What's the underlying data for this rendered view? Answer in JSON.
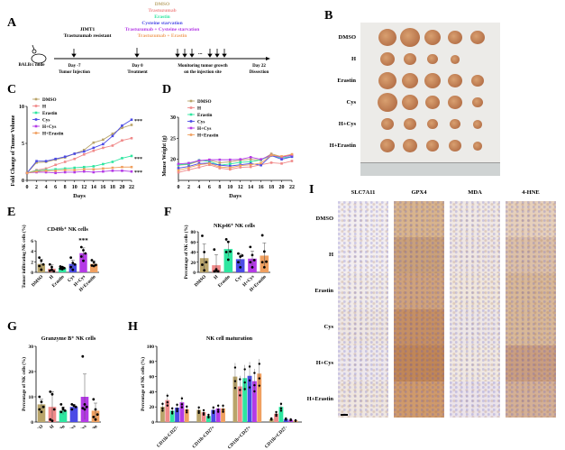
{
  "panels": {
    "A": {
      "label": "A",
      "groups": [
        "DMSO",
        "Trastuzumab",
        "Erastin",
        "Cysteine starvation",
        "Trastuzumab + Cysteine starvation",
        "Trastuzumab + Erastin"
      ],
      "group_colors": [
        "#b9a46a",
        "#f08a8a",
        "#2ee6a0",
        "#4b4be6",
        "#b43ae6",
        "#f0a060"
      ],
      "mouse_label": "BALB/c nude",
      "cell_line": "JIMT1",
      "cell_desc": "Trastuzumab resistant",
      "events": [
        {
          "day": "Day -7",
          "desc": "Tumor Injection"
        },
        {
          "day": "Day 0",
          "desc": "Treatment"
        },
        {
          "day": "Monitoring tumor growth",
          "desc": "on the injection site"
        },
        {
          "day": "Day 22",
          "desc": "Dissection"
        }
      ],
      "ellipsis": "..."
    },
    "B": {
      "label": "B",
      "rows": [
        "DMSO",
        "H",
        "Erastin",
        "Cys",
        "H+Cys",
        "H+Erastin"
      ],
      "tumor_counts": [
        5,
        4,
        5,
        5,
        5,
        5
      ]
    },
    "I": {
      "label": "I",
      "columns": [
        "SLC7A11",
        "GPX4",
        "MDA",
        "4-HNE"
      ],
      "rows": [
        "DMSO",
        "H",
        "Erastin",
        "Cys",
        "H+Cys",
        "H+Erastin"
      ]
    }
  },
  "chart_data": [
    {
      "id": "C",
      "panel_label": "C",
      "type": "line",
      "title": "",
      "xlabel": "Days",
      "ylabel": "Fold Change of Tumor Volume",
      "x": [
        0,
        2,
        4,
        6,
        8,
        10,
        12,
        14,
        16,
        18,
        20,
        22
      ],
      "xlim": [
        0,
        22
      ],
      "ylim": [
        0,
        10
      ],
      "yticks": [
        0,
        5,
        10
      ],
      "legend_position": "top-left",
      "series": [
        {
          "name": "DMSO",
          "color": "#b9a46a",
          "values": [
            1,
            2.4,
            2.5,
            2.8,
            3.1,
            3.6,
            4.1,
            5.1,
            5.5,
            6.3,
            7.1,
            7.5
          ]
        },
        {
          "name": "H",
          "color": "#f08a8a",
          "values": [
            1,
            1.4,
            1.6,
            2.1,
            2.5,
            2.9,
            3.5,
            4.0,
            4.4,
            4.7,
            5.4,
            5.7
          ]
        },
        {
          "name": "Erastin",
          "color": "#2ee6a0",
          "values": [
            1,
            1.3,
            1.4,
            1.5,
            1.6,
            1.7,
            1.8,
            1.9,
            2.2,
            2.5,
            3.0,
            3.3
          ]
        },
        {
          "name": "Cys",
          "color": "#4b4be6",
          "values": [
            1,
            2.6,
            2.6,
            2.9,
            3.2,
            3.6,
            3.9,
            4.4,
            4.9,
            6.0,
            7.4,
            8.2
          ]
        },
        {
          "name": "H+Cys",
          "color": "#b43ae6",
          "values": [
            1,
            1.1,
            1.1,
            1.0,
            1.1,
            1.1,
            1.2,
            1.1,
            1.2,
            1.3,
            1.3,
            1.2
          ]
        },
        {
          "name": "H+Erastin",
          "color": "#f0a060",
          "values": [
            1,
            1.2,
            1.3,
            1.3,
            1.4,
            1.4,
            1.5,
            1.5,
            1.6,
            1.7,
            1.8,
            1.8
          ]
        }
      ],
      "annotations": [
        "***",
        "***",
        "***"
      ]
    },
    {
      "id": "D",
      "panel_label": "D",
      "type": "line",
      "title": "",
      "xlabel": "Days",
      "ylabel": "Mouse Weight (g)",
      "x": [
        0,
        2,
        4,
        6,
        8,
        10,
        12,
        14,
        16,
        18,
        20,
        22
      ],
      "xlim": [
        0,
        22
      ],
      "ylim": [
        15,
        30
      ],
      "yticks": [
        20,
        25,
        30
      ],
      "legend_position": "top-left",
      "series": [
        {
          "name": "DMSO",
          "color": "#b9a46a",
          "values": [
            18.6,
            18.8,
            19.6,
            19.8,
            19.2,
            19.4,
            19.8,
            20.0,
            19.8,
            21.3,
            20.6,
            21.0
          ]
        },
        {
          "name": "H",
          "color": "#f08a8a",
          "values": [
            16.9,
            17.5,
            18.1,
            18.7,
            17.9,
            17.6,
            18.1,
            18.2,
            18.7,
            19.2,
            19.0,
            19.6
          ]
        },
        {
          "name": "Erastin",
          "color": "#2ee6a0",
          "values": [
            18.7,
            18.9,
            19.8,
            19.5,
            18.6,
            18.9,
            19.3,
            19.4,
            19.9,
            20.9,
            20.3,
            20.7
          ]
        },
        {
          "name": "Cys",
          "color": "#4b4be6",
          "values": [
            17.9,
            18.3,
            19.0,
            19.1,
            18.6,
            18.4,
            18.7,
            19.0,
            18.6,
            20.9,
            20.0,
            20.6
          ]
        },
        {
          "name": "H+Cys",
          "color": "#b43ae6",
          "values": [
            18.9,
            19.1,
            19.7,
            19.9,
            19.9,
            19.9,
            20.0,
            20.5,
            20.0,
            21.0,
            20.5,
            21.0
          ]
        },
        {
          "name": "H+Erastin",
          "color": "#f0a060",
          "values": [
            17.4,
            18.0,
            18.7,
            19.0,
            18.2,
            18.0,
            18.5,
            18.7,
            19.1,
            21.0,
            20.7,
            21.2
          ]
        }
      ]
    },
    {
      "id": "E",
      "panel_label": "E",
      "type": "bar",
      "title": "CD49b⁺ NK cells",
      "ylabel": "Tumor infiltrating NK cells (%)",
      "categories": [
        "DMSO",
        "H",
        "Erastin",
        "Cys",
        "H+Cys",
        "H+Erastin"
      ],
      "colors": [
        "#b9a46a",
        "#f08a8a",
        "#2ee6a0",
        "#4b4be6",
        "#b43ae6",
        "#f0a060"
      ],
      "values": [
        1.6,
        0.7,
        0.85,
        1.6,
        3.65,
        1.6
      ],
      "errors": [
        0.9,
        0.7,
        0.25,
        0.75,
        1.0,
        0.6
      ],
      "points": [
        [
          2.8,
          2.2,
          1.5,
          1.2,
          0.5
        ],
        [
          1.5,
          1.0,
          0.2,
          0.3,
          0.5
        ],
        [
          1.1,
          1.0,
          0.8,
          0.7,
          0.6
        ],
        [
          2.8,
          1.8,
          1.5,
          1.0,
          0.5
        ],
        [
          4.8,
          4.2,
          3.6,
          3.0,
          2.2
        ],
        [
          2.3,
          1.9,
          1.4,
          1.3,
          1.2
        ]
      ],
      "ylim": [
        0,
        6
      ],
      "yticks": [
        0,
        2,
        4,
        6
      ],
      "annotations": [
        {
          "category": "H+Cys",
          "text": "***"
        }
      ]
    },
    {
      "id": "F",
      "panel_label": "F",
      "type": "bar",
      "title": "NKp46⁺ NK cells",
      "ylabel": "Percentage of NK cells (%)",
      "categories": [
        "DMSO",
        "H",
        "Erastin",
        "Cys",
        "H+Cys",
        "H+Erastin"
      ],
      "colors": [
        "#b9a46a",
        "#f08a8a",
        "#2ee6a0",
        "#4b4be6",
        "#b43ae6",
        "#f0a060"
      ],
      "values": [
        28,
        14,
        46,
        26,
        27,
        33
      ],
      "errors": [
        28,
        21,
        15,
        10,
        15,
        25
      ],
      "points": [
        [
          72,
          40,
          20,
          15,
          4
        ],
        [
          45,
          6,
          2,
          2,
          3
        ],
        [
          65,
          60,
          41,
          40,
          25
        ],
        [
          37,
          31,
          33,
          20,
          10
        ],
        [
          50,
          34,
          24,
          20,
          10
        ],
        [
          73,
          41,
          21,
          20,
          10
        ]
      ],
      "ylim": [
        0,
        80
      ],
      "yticks": [
        0,
        20,
        40,
        60,
        80
      ]
    },
    {
      "id": "G",
      "panel_label": "G",
      "type": "bar",
      "title": "Granzyme B⁺ NK cells",
      "ylabel": "Percentage of NK cells (%)",
      "categories": [
        "DMSO",
        "H",
        "Erastin",
        "Cys",
        "H+Cys",
        "H+Erastin"
      ],
      "colors": [
        "#b9a46a",
        "#f08a8a",
        "#2ee6a0",
        "#4b4be6",
        "#b43ae6",
        "#f0a060"
      ],
      "values": [
        7,
        6,
        4.5,
        6,
        10,
        4.5
      ],
      "errors": [
        2,
        6,
        1.5,
        1,
        9,
        3
      ],
      "points": [
        [
          10,
          8,
          6,
          5,
          4
        ],
        [
          12,
          11,
          5,
          1,
          0.5
        ],
        [
          7,
          5,
          4.5,
          4,
          5.5
        ],
        [
          7,
          6.5,
          6,
          5,
          6.5
        ],
        [
          26,
          7,
          6,
          5.5,
          5
        ],
        [
          9,
          5,
          3,
          2,
          1
        ]
      ],
      "ylim": [
        0,
        30
      ],
      "yticks": [
        0,
        10,
        20,
        30
      ]
    },
    {
      "id": "H",
      "panel_label": "H",
      "type": "bar",
      "title": "NK cell maturation",
      "ylabel": "Percentage of NK cells (%)",
      "categories": [
        "CD11b-CD27-",
        "CD11b-CD27+",
        "CD11b+CD27+",
        "CD11b+CD27-"
      ],
      "series": [
        {
          "name": "DMSO",
          "color": "#b9a46a",
          "values": [
            20,
            16,
            60,
            4
          ]
        },
        {
          "name": "H",
          "color": "#f08a8a",
          "values": [
            29,
            13,
            47,
            11
          ]
        },
        {
          "name": "Erastin",
          "color": "#2ee6a0",
          "values": [
            15,
            8,
            58,
            20
          ]
        },
        {
          "name": "Cys",
          "color": "#4b4be6",
          "values": [
            19,
            16,
            61,
            4
          ]
        },
        {
          "name": "H+Cys",
          "color": "#b43ae6",
          "values": [
            26,
            18,
            54,
            3
          ]
        },
        {
          "name": "H+Erastin",
          "color": "#f0a060",
          "values": [
            17,
            18,
            64,
            2
          ]
        }
      ],
      "ylim": [
        0,
        100
      ],
      "yticks": [
        0,
        20,
        40,
        60,
        80,
        100
      ]
    }
  ]
}
